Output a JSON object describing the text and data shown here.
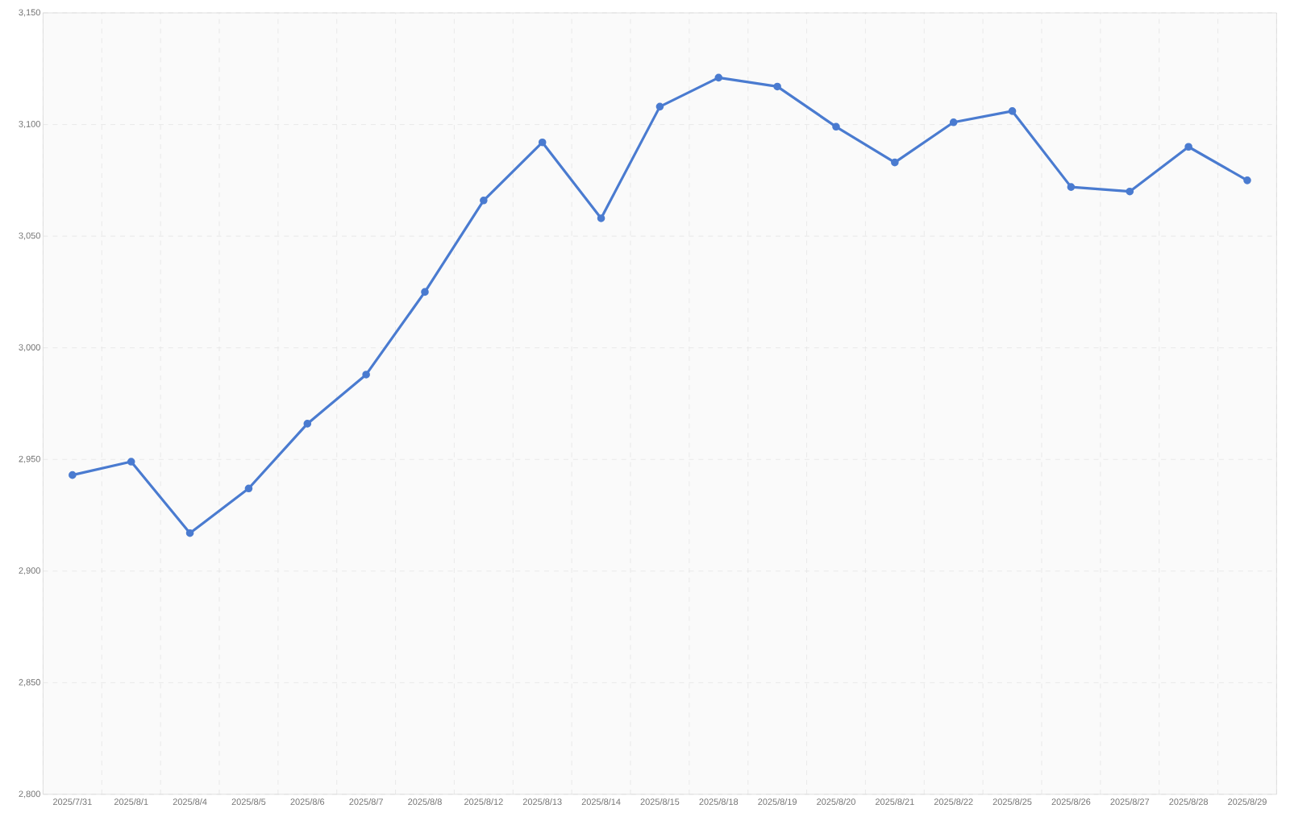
{
  "chart_data": {
    "type": "line",
    "categories": [
      "2025/7/31",
      "2025/8/1",
      "2025/8/4",
      "2025/8/5",
      "2025/8/6",
      "2025/8/7",
      "2025/8/8",
      "2025/8/12",
      "2025/8/13",
      "2025/8/14",
      "2025/8/15",
      "2025/8/18",
      "2025/8/19",
      "2025/8/20",
      "2025/8/21",
      "2025/8/22",
      "2025/8/25",
      "2025/8/26",
      "2025/8/27",
      "2025/8/28",
      "2025/8/29"
    ],
    "series": [
      {
        "color": "#4a7bd0",
        "values": [
          2943,
          2949,
          2917,
          2937,
          2966,
          2988,
          3025,
          3066,
          3092,
          3058,
          3108,
          3121,
          3117,
          3099,
          3083,
          3101,
          3106,
          3072,
          3070,
          3090,
          3075
        ]
      }
    ],
    "ylim": [
      2800,
      3150
    ],
    "yticks": [
      {
        "value": 2800,
        "label": "2,800"
      },
      {
        "value": 2850,
        "label": "2,850"
      },
      {
        "value": 2900,
        "label": "2,900"
      },
      {
        "value": 2950,
        "label": "2,950"
      },
      {
        "value": 3000,
        "label": "3,000"
      },
      {
        "value": 3050,
        "label": "3,050"
      },
      {
        "value": 3100,
        "label": "3,100"
      },
      {
        "value": 3150,
        "label": "3,150"
      }
    ],
    "grid": true,
    "marker": "circle",
    "line_style": "solid"
  }
}
